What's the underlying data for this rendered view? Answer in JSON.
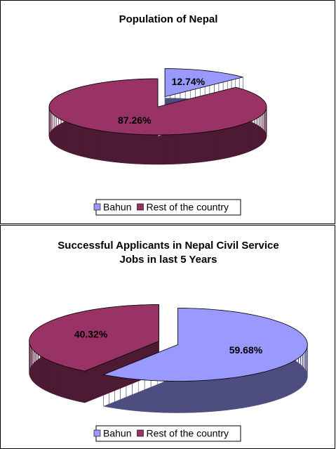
{
  "chart_data": [
    {
      "type": "pie",
      "title": [
        "Population of Nepal"
      ],
      "categories": [
        "Bahun",
        "Rest of the country"
      ],
      "values": [
        12.74,
        87.26
      ],
      "value_labels": [
        "12.74%",
        "87.26%"
      ],
      "colors": [
        "#9999ff",
        "#993366"
      ],
      "legend": "bottom"
    },
    {
      "type": "pie",
      "title": [
        "Successful Applicants in  Nepal Civil Service",
        "Jobs in last 5 Years"
      ],
      "categories": [
        "Bahun",
        "Rest of the country"
      ],
      "values": [
        59.68,
        40.32
      ],
      "value_labels": [
        "59.68%",
        "40.32%"
      ],
      "colors": [
        "#9999ff",
        "#993366"
      ],
      "legend": "bottom"
    }
  ]
}
